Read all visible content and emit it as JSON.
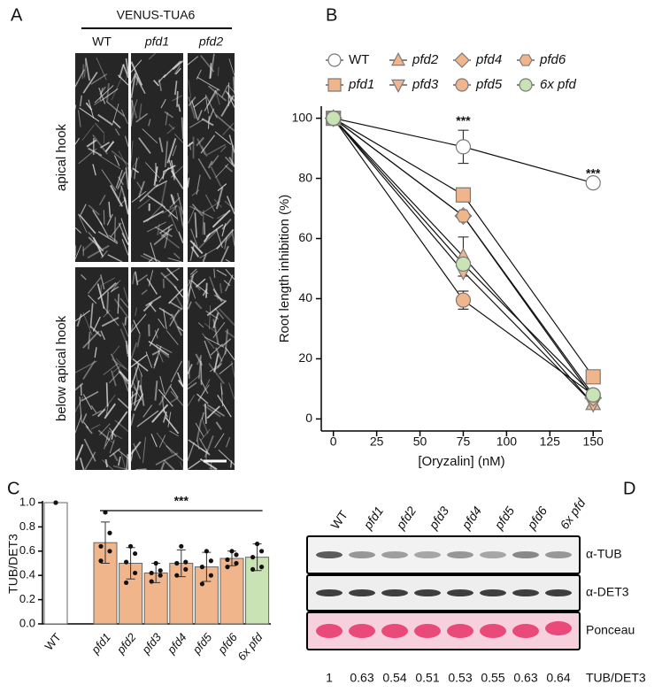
{
  "panel_labels": [
    "A",
    "B",
    "C",
    "D"
  ],
  "micrograph": {
    "title": "VENUS-TUA6",
    "columns": [
      "WT",
      "pfd1",
      "pfd2"
    ],
    "rows": [
      "apical hook",
      "below apical hook"
    ]
  },
  "chart_data": [
    {
      "type": "line",
      "xlabel": "[Oryzalin] (nM)",
      "ylabel": "Root length inhibition (%)",
      "x": [
        0,
        75,
        150
      ],
      "xlim": [
        -7,
        155
      ],
      "xticks": [
        0,
        25,
        50,
        75,
        100,
        125,
        150
      ],
      "ylim": [
        -4,
        104
      ],
      "yticks": [
        0,
        20,
        40,
        60,
        80,
        100
      ],
      "annotations": [
        "***",
        "***"
      ],
      "series": [
        {
          "name": "WT",
          "color": "#ffffff",
          "marker": "circle",
          "values": [
            100,
            90.5,
            78.5
          ],
          "errors": [
            null,
            5.5,
            null
          ]
        },
        {
          "name": "pfd1",
          "color": "#f1b58b",
          "marker": "square",
          "values": [
            100,
            74.5,
            14
          ]
        },
        {
          "name": "pfd2",
          "color": "#f1b58b",
          "marker": "triangle-up",
          "values": [
            100,
            54,
            5
          ],
          "errors": [
            null,
            6.5,
            null
          ]
        },
        {
          "name": "pfd3",
          "color": "#f1b58b",
          "marker": "triangle-down",
          "values": [
            100,
            49,
            5
          ]
        },
        {
          "name": "pfd4",
          "color": "#f1b58b",
          "marker": "diamond",
          "values": [
            100,
            67.5,
            7
          ]
        },
        {
          "name": "pfd5",
          "color": "#f1b58b",
          "marker": "circle",
          "values": [
            100,
            39.5,
            8
          ],
          "errors": [
            null,
            3,
            null
          ]
        },
        {
          "name": "pfd6",
          "color": "#f1b58b",
          "marker": "hexagon",
          "values": [
            100,
            67.5,
            8
          ]
        },
        {
          "name": "6x pfd",
          "color": "#c9e3b4",
          "marker": "circle",
          "values": [
            100,
            51.5,
            8
          ]
        }
      ]
    },
    {
      "type": "bar",
      "ylabel": "TUB/DET3",
      "categories": [
        "WT",
        "pfd1",
        "pfd2",
        "pfd3",
        "pfd4",
        "pfd5",
        "pfd6",
        "6x pfd"
      ],
      "values": [
        1,
        0.67,
        0.5,
        0.42,
        0.5,
        0.47,
        0.54,
        0.55
      ],
      "errors": [
        0,
        0.17,
        0.13,
        0.08,
        0.11,
        0.12,
        0.06,
        0.11
      ],
      "colors": [
        "#ffffff",
        "#f1b58b",
        "#f1b58b",
        "#f1b58b",
        "#f1b58b",
        "#f1b58b",
        "#f1b58b",
        "#c9e3b4"
      ],
      "points": [
        [
          1
        ],
        [
          0.92,
          0.75,
          0.64,
          0.6,
          0.52
        ],
        [
          0.64,
          0.58,
          0.51,
          0.42,
          0.34
        ],
        [
          0.5,
          0.44,
          0.42,
          0.4,
          0.35
        ],
        [
          0.64,
          0.51,
          0.5,
          0.45,
          0.4
        ],
        [
          0.6,
          0.52,
          0.47,
          0.4,
          0.33
        ],
        [
          0.6,
          0.57,
          0.53,
          0.5,
          0.47
        ],
        [
          0.66,
          0.6,
          0.55,
          0.47,
          0.45
        ]
      ],
      "ylim": [
        0,
        1
      ],
      "yticks": [
        {
          "value": 0,
          "label": "0.0"
        },
        0.2,
        0.4,
        0.6,
        0.8,
        {
          "value": 1,
          "label": "1.0"
        }
      ],
      "annotations": [
        "***"
      ]
    }
  ],
  "blot": {
    "lanes": [
      "WT",
      "pfd1",
      "pfd2",
      "pfd3",
      "pfd4",
      "pfd5",
      "pfd6",
      "6x pfd"
    ],
    "rows": [
      "α-TUB",
      "α-DET3",
      "Ponceau"
    ],
    "ratios": [
      1,
      0.63,
      0.54,
      0.51,
      0.53,
      0.55,
      0.63,
      0.64
    ],
    "ratio_label": "TUB/DET3"
  }
}
